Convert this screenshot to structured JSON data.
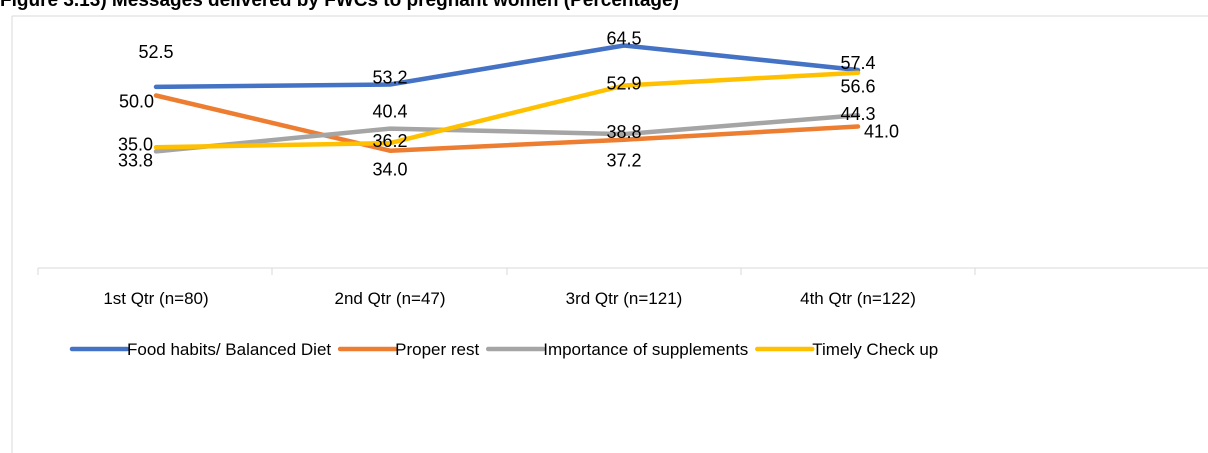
{
  "chart_data": {
    "type": "line",
    "title": "Figure 3.13) Messages delivered by FWCs to pregnant women (Percentage)",
    "categories": [
      "1st Qtr (n=80)",
      "2nd Qtr (n=47)",
      "3rd Qtr (n=121)",
      "4th Qtr (n=122)"
    ],
    "series": [
      {
        "name": "Food habits/ Balanced Diet",
        "color": "#4472C4",
        "values": [
          52.5,
          53.2,
          64.5,
          57.4
        ]
      },
      {
        "name": "Proper rest",
        "color": "#ED7D31",
        "values": [
          50.0,
          34.0,
          37.2,
          41.0
        ]
      },
      {
        "name": "Importance of supplements",
        "color": "#A5A5A5",
        "values": [
          33.8,
          40.4,
          38.8,
          44.3
        ]
      },
      {
        "name": "Timely Check up",
        "color": "#FFC000",
        "values": [
          35.0,
          36.2,
          52.9,
          56.6
        ]
      }
    ],
    "ylim": [
      0,
      70
    ],
    "legend_position": "bottom",
    "grid": false
  }
}
